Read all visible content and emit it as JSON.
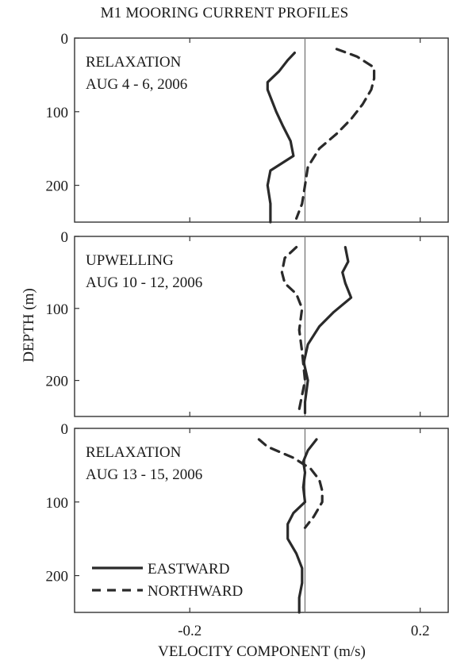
{
  "title": "M1 MOORING CURRENT PROFILES",
  "chart_data": {
    "type": "line",
    "xlabel": "VELOCITY COMPONENT (m/s)",
    "ylabel": "DEPTH (m)",
    "xlim": [
      -0.4,
      0.25
    ],
    "xticks": [
      -0.2,
      0.2
    ],
    "xtick_labels": [
      "-0.2",
      "0.2"
    ],
    "ylim": [
      0,
      250
    ],
    "yticks": [
      0,
      100,
      200
    ],
    "yaxis_inverted": true,
    "zero_line": true,
    "legend": {
      "placement": "bottom-left of bottom panel",
      "entries": [
        {
          "label": "EASTWARD",
          "style": "solid"
        },
        {
          "label": "NORTHWARD",
          "style": "dashed"
        }
      ]
    },
    "panels": [
      {
        "label_line1": "RELAXATION",
        "label_line2": "AUG 4 - 6, 2006",
        "series": [
          {
            "name": "EASTWARD",
            "style": "solid",
            "depth": [
              20,
              30,
              45,
              60,
              70,
              80,
              100,
              120,
              140,
              160,
              180,
              200,
              225,
              250
            ],
            "values": [
              -0.018,
              -0.03,
              -0.045,
              -0.065,
              -0.065,
              -0.06,
              -0.05,
              -0.038,
              -0.025,
              -0.02,
              -0.06,
              -0.065,
              -0.06,
              -0.06
            ]
          },
          {
            "name": "NORTHWARD",
            "style": "dashed",
            "depth": [
              15,
              25,
              40,
              55,
              70,
              90,
              110,
              130,
              150,
              175,
              200,
              225,
              245
            ],
            "values": [
              0.055,
              0.09,
              0.12,
              0.12,
              0.115,
              0.1,
              0.08,
              0.055,
              0.025,
              0.005,
              0.0,
              -0.005,
              -0.015
            ]
          }
        ]
      },
      {
        "label_line1": "UPWELLING",
        "label_line2": "AUG 10 - 12, 2006",
        "series": [
          {
            "name": "EASTWARD",
            "style": "solid",
            "depth": [
              15,
              35,
              50,
              65,
              85,
              105,
              125,
              150,
              175,
              200,
              230,
              245
            ],
            "values": [
              0.07,
              0.075,
              0.065,
              0.07,
              0.08,
              0.05,
              0.025,
              0.005,
              -0.002,
              0.005,
              0.0,
              0.0
            ]
          },
          {
            "name": "NORTHWARD",
            "style": "dashed",
            "depth": [
              15,
              30,
              50,
              65,
              80,
              100,
              130,
              160,
              200,
              240
            ],
            "values": [
              -0.015,
              -0.035,
              -0.04,
              -0.035,
              -0.015,
              -0.005,
              -0.01,
              -0.005,
              0.0,
              -0.01
            ]
          }
        ]
      },
      {
        "label_line1": "RELAXATION",
        "label_line2": "AUG 13 - 15, 2006",
        "series": [
          {
            "name": "EASTWARD",
            "style": "solid",
            "depth": [
              15,
              30,
              45,
              60,
              80,
              100,
              115,
              130,
              150,
              170,
              190,
              210,
              230,
              250
            ],
            "values": [
              0.02,
              0.005,
              -0.003,
              0.0,
              -0.003,
              0.0,
              -0.02,
              -0.03,
              -0.03,
              -0.015,
              -0.005,
              -0.005,
              -0.01,
              -0.01
            ]
          },
          {
            "name": "NORTHWARD",
            "style": "dashed",
            "depth": [
              15,
              25,
              40,
              55,
              70,
              85,
              100,
              120,
              135
            ],
            "values": [
              -0.08,
              -0.065,
              -0.02,
              0.01,
              0.025,
              0.03,
              0.03,
              0.015,
              0.0
            ]
          }
        ]
      }
    ]
  }
}
